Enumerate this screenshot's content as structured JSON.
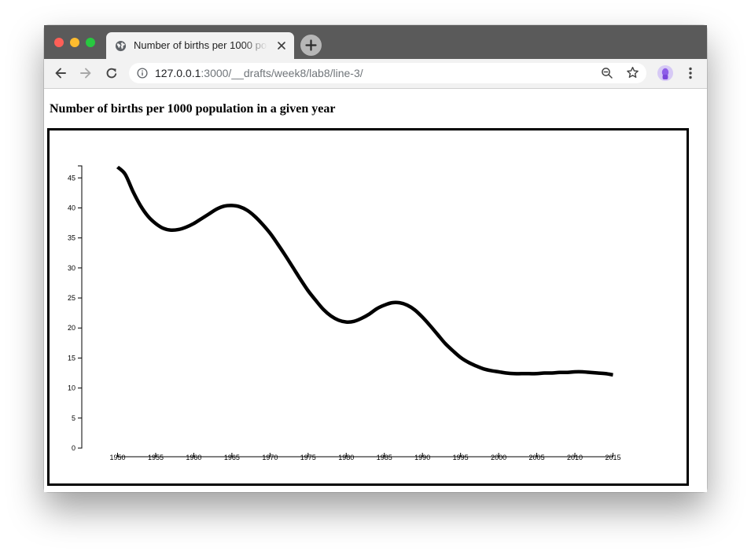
{
  "browser": {
    "tab_title": "Number of births per 1000 population in a given year",
    "url_host": "127.0.0.1",
    "url_path": ":3000/__drafts/week8/lab8/line-3/",
    "tab_favicon": "globe-icon",
    "controls": [
      "back-icon",
      "forward-icon",
      "reload-icon",
      "info-icon",
      "zoom-icon",
      "star-icon",
      "menu-icon"
    ]
  },
  "page": {
    "title": "Number of births per 1000 population in a given year"
  },
  "chart_data": {
    "type": "line",
    "title": "",
    "xlabel": "",
    "ylabel": "",
    "curve": "smooth",
    "xlim": [
      1950,
      2015
    ],
    "ylim": [
      0,
      47
    ],
    "x_ticks": [
      "1950",
      "1955",
      "1960",
      "1965",
      "1970",
      "1975",
      "1980",
      "1985",
      "1990",
      "1995",
      "2000",
      "2005",
      "2010",
      "2015"
    ],
    "y_ticks": [
      "0",
      "5",
      "10",
      "15",
      "20",
      "25",
      "30",
      "35",
      "40",
      "45"
    ],
    "grid": false,
    "line_color": "#000000",
    "series": [
      {
        "x": [
          1950,
          1951,
          1952,
          1953,
          1954,
          1955,
          1956,
          1957,
          1958,
          1959,
          1960,
          1961,
          1962,
          1963,
          1964,
          1965,
          1966,
          1967,
          1968,
          1969,
          1970,
          1971,
          1972,
          1973,
          1974,
          1975,
          1976,
          1977,
          1978,
          1979,
          1980,
          1981,
          1982,
          1983,
          1984,
          1985,
          1986,
          1987,
          1988,
          1989,
          1990,
          1991,
          1992,
          1993,
          1994,
          1995,
          1996,
          1997,
          1998,
          1999,
          2000,
          2001,
          2002,
          2003,
          2004,
          2005,
          2006,
          2007,
          2008,
          2009,
          2010,
          2011,
          2012,
          2013,
          2014,
          2015
        ],
        "values": [
          46.8,
          45.6,
          42.8,
          40.4,
          38.6,
          37.4,
          36.6,
          36.3,
          36.4,
          36.8,
          37.4,
          38.2,
          39.0,
          39.8,
          40.3,
          40.4,
          40.2,
          39.6,
          38.6,
          37.3,
          35.8,
          34.0,
          32.1,
          30.1,
          28.1,
          26.2,
          24.6,
          23.1,
          22.0,
          21.3,
          21.0,
          21.1,
          21.6,
          22.3,
          23.2,
          23.8,
          24.2,
          24.2,
          23.8,
          23.0,
          21.8,
          20.4,
          18.9,
          17.4,
          16.2,
          15.1,
          14.3,
          13.7,
          13.2,
          12.9,
          12.7,
          12.5,
          12.4,
          12.4,
          12.4,
          12.4,
          12.5,
          12.5,
          12.6,
          12.6,
          12.7,
          12.7,
          12.6,
          12.5,
          12.4,
          12.2
        ]
      }
    ]
  }
}
